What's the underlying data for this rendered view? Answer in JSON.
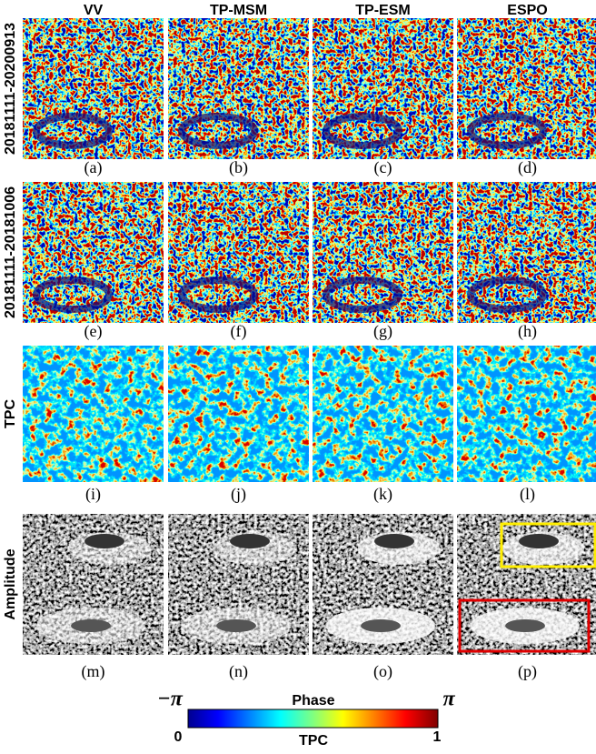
{
  "headers": {
    "columns": [
      "VV",
      "TP-MSM",
      "TP-ESM",
      "ESPO"
    ]
  },
  "row_labels": [
    "20181111-20200913",
    "20181111-20181006",
    "TPC",
    "Amplitude"
  ],
  "captions": [
    "(a)",
    "(b)",
    "(c)",
    "(d)",
    "(e)",
    "(f)",
    "(g)",
    "(h)",
    "(i)",
    "(j)",
    "(k)",
    "(l)",
    "(m)",
    "(n)",
    "(o)",
    "(p)"
  ],
  "colorbar": {
    "top_left": "−π",
    "top_title": "Phase",
    "top_right": "π",
    "bottom_left": "0",
    "bottom_title": "TPC",
    "bottom_right": "1"
  }
}
